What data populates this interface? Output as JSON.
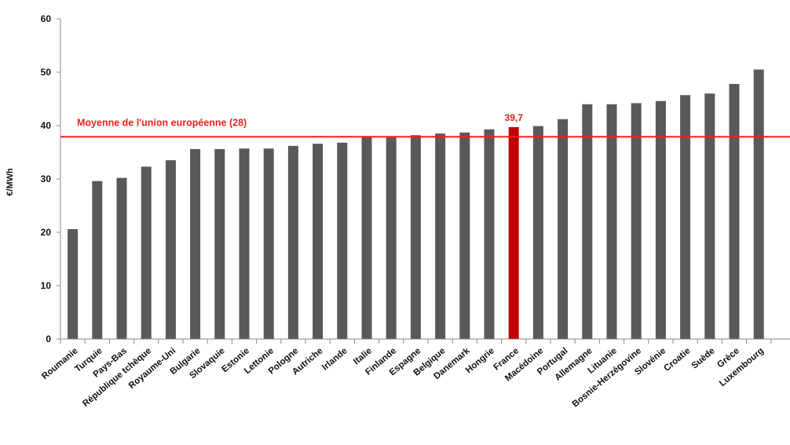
{
  "chart_data": {
    "type": "bar",
    "ylabel": "€/MWh",
    "ylim": [
      0,
      60
    ],
    "yticks": [
      0,
      10,
      20,
      30,
      40,
      50,
      60
    ],
    "grid": false,
    "categories": [
      "Roumanie",
      "Turquie",
      "Pays-Bas",
      "République tchèque",
      "Royaume-Uni",
      "Bulgarie",
      "Slovaquie",
      "Estonie",
      "Lettonie",
      "Pologne",
      "Autriche",
      "Irlande",
      "Italie",
      "Finlande",
      "Espagne",
      "Belgique",
      "Danemark",
      "Hongrie",
      "France",
      "Macédoine",
      "Portugal",
      "Allemagne",
      "Lituanie",
      "Bosnie-Herzégovine",
      "Slovénie",
      "Croatie",
      "Suède",
      "Grèce",
      "Luxembourg"
    ],
    "values": [
      20.6,
      29.6,
      30.2,
      32.3,
      33.5,
      35.6,
      35.6,
      35.7,
      35.7,
      36.2,
      36.6,
      36.8,
      38.0,
      38.0,
      38.2,
      38.5,
      38.7,
      39.3,
      39.7,
      39.9,
      41.2,
      44.0,
      44.0,
      44.2,
      44.6,
      45.7,
      46.0,
      47.8,
      50.5
    ],
    "highlight": {
      "category": "France",
      "label": "39,7",
      "color": "#c00000"
    },
    "bar_color": "#595959",
    "reference_line": {
      "label": "Moyenne de l'union européenne (28)",
      "value": 37.9,
      "color": "#ff1a1a"
    }
  }
}
